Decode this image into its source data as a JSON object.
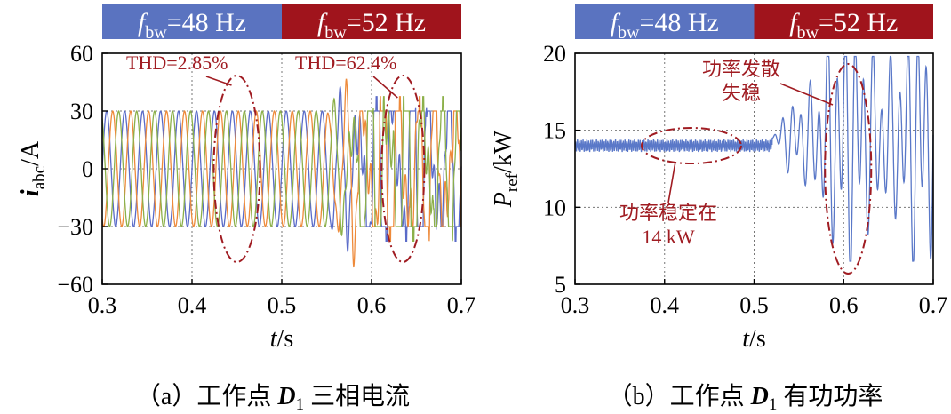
{
  "colors": {
    "band_left": "#5a73c0",
    "band_right": "#a0141c",
    "phase_a": "#5a6bc8",
    "phase_b": "#ee8a3a",
    "phase_c": "#8cb04a",
    "power": "#5a78c8",
    "annotation": "#a01c22"
  },
  "chart_data": [
    {
      "panel": "a",
      "type": "line",
      "caption": "（a）工作点 D1 三相电流",
      "caption_parts": {
        "pre": "（a）工作点 ",
        "var": "D",
        "sub": "1",
        "post": " 三相电流"
      },
      "xlabel": "t/s",
      "xlabel_parts": {
        "var": "t",
        "unit": "/s"
      },
      "ylabel": "iabc/A",
      "ylabel_parts": {
        "var": "i",
        "sub": "abc",
        "unit": "/A"
      },
      "xlim": [
        0.3,
        0.7
      ],
      "ylim": [
        -60,
        60
      ],
      "xticks": [
        0.3,
        0.4,
        0.5,
        0.6,
        0.7
      ],
      "xtick_labels": [
        "0.3",
        "0.4",
        "0.5",
        "0.6",
        "0.7"
      ],
      "yticks": [
        -60,
        -30,
        0,
        30,
        60
      ],
      "ytick_labels": [
        "−60",
        "−30",
        "0",
        "30",
        "60"
      ],
      "grid": true,
      "bands": [
        {
          "label": "fbw=48 Hz",
          "var": "f",
          "sub": "bw",
          "rest": "=48 Hz",
          "x_range": [
            0.3,
            0.5
          ]
        },
        {
          "label": "fbw=52 Hz",
          "var": "f",
          "sub": "bw",
          "rest": "=52 Hz",
          "x_range": [
            0.5,
            0.7
          ]
        }
      ],
      "series": [
        {
          "name": "ia",
          "phase_deg": 0
        },
        {
          "name": "ib",
          "phase_deg": -120
        },
        {
          "name": "ic",
          "phase_deg": 120
        }
      ],
      "signal": {
        "frequency_hz": 50,
        "stable_amplitude_A": 30,
        "instability_onset_s": 0.55,
        "unstable_amplitude_A": 40,
        "clip_A": 30
      },
      "annotations": [
        {
          "text": "THD=2.85%",
          "x": 0.45,
          "y": 0
        },
        {
          "text": "THD=62.4%",
          "x": 0.635,
          "y": 0
        }
      ]
    },
    {
      "panel": "b",
      "type": "line",
      "caption": "（b）工作点 D1 有功功率",
      "caption_parts": {
        "pre": "（b）工作点 ",
        "var": "D",
        "sub": "1",
        "post": " 有功功率"
      },
      "xlabel": "t/s",
      "xlabel_parts": {
        "var": "t",
        "unit": "/s"
      },
      "ylabel": "Pref/kW",
      "ylabel_parts": {
        "var": "P",
        "sub": "ref",
        "unit": "/kW"
      },
      "xlim": [
        0.3,
        0.7
      ],
      "ylim": [
        5,
        20
      ],
      "xticks": [
        0.3,
        0.4,
        0.5,
        0.6,
        0.7
      ],
      "xtick_labels": [
        "0.3",
        "0.4",
        "0.5",
        "0.6",
        "0.7"
      ],
      "yticks": [
        5,
        10,
        15,
        20
      ],
      "ytick_labels": [
        "5",
        "10",
        "15",
        "20"
      ],
      "grid": true,
      "bands": [
        {
          "label": "fbw=48 Hz",
          "var": "f",
          "sub": "bw",
          "rest": "=48 Hz",
          "x_range": [
            0.3,
            0.5
          ]
        },
        {
          "label": "fbw=52 Hz",
          "var": "f",
          "sub": "bw",
          "rest": "=52 Hz",
          "x_range": [
            0.5,
            0.7
          ]
        }
      ],
      "series": [
        {
          "name": "Pref"
        }
      ],
      "signal": {
        "steady_kW": 14,
        "ripple_kW": 0.3,
        "divergence_onset_s": 0.52,
        "max_swing_kW": 6,
        "oscillation_hz": 100
      },
      "annotations": [
        {
          "text": "功率稳定在",
          "x": 0.43,
          "y": 14
        },
        {
          "text": "14 kW",
          "x": 0.43,
          "y": 14
        },
        {
          "text": "功率发散",
          "x": 0.595,
          "y": 15
        },
        {
          "text": "失稳",
          "x": 0.595,
          "y": 15
        }
      ]
    }
  ]
}
